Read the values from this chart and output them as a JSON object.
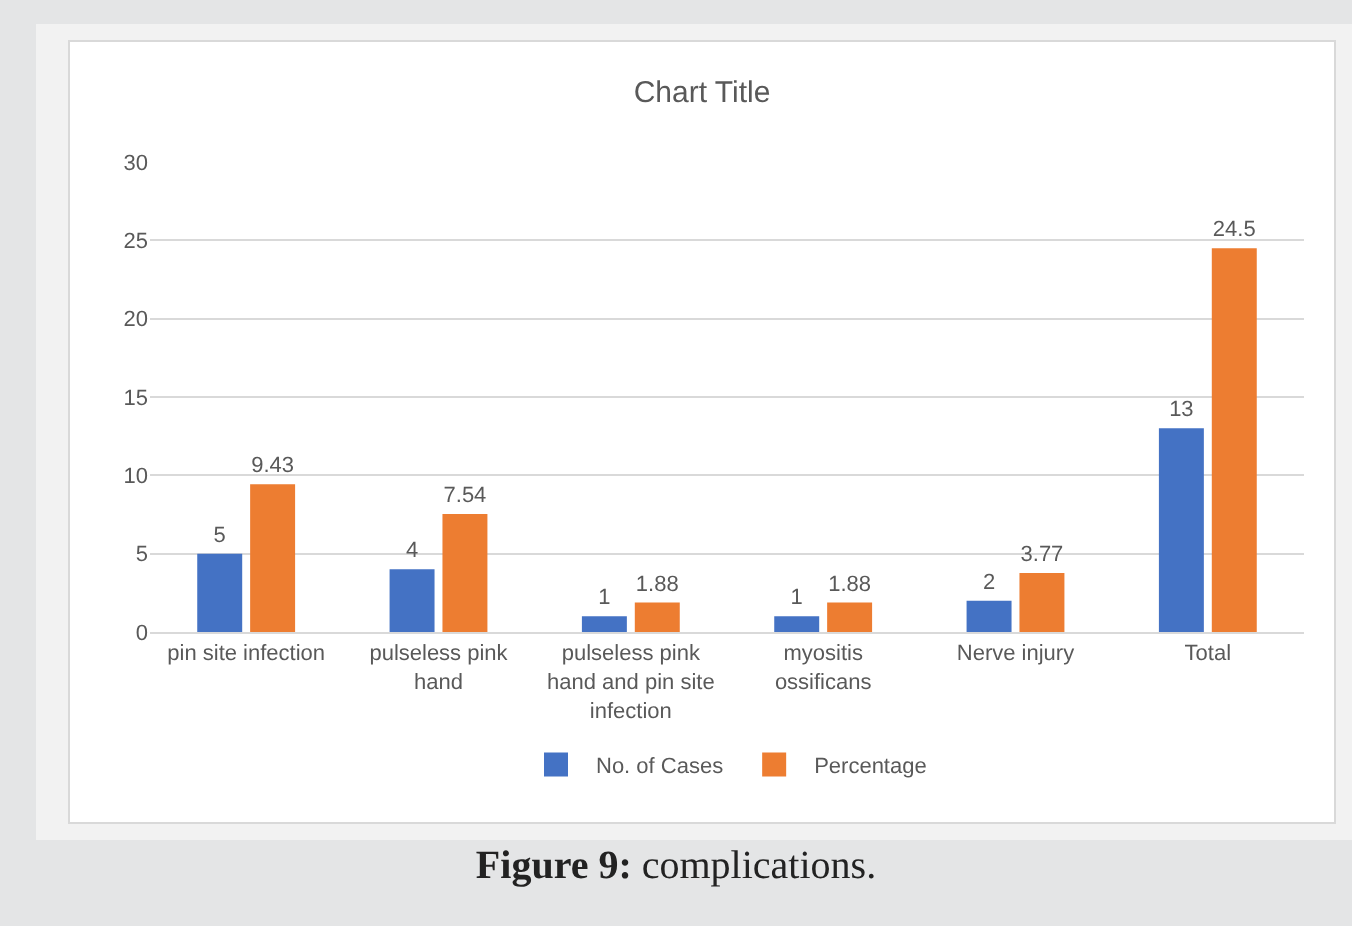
{
  "chart_data": {
    "type": "bar",
    "title": "Chart Title",
    "categories": [
      "pin site infection",
      "pulseless pink hand",
      "pulseless pink hand and pin site infection",
      "myositis ossificans",
      "Nerve injury",
      "Total"
    ],
    "series": [
      {
        "name": "No. of Cases",
        "color": "#4472c4",
        "values": [
          5,
          4,
          1,
          1,
          2,
          13
        ]
      },
      {
        "name": "Percentage",
        "color": "#ed7d31",
        "values": [
          9.43,
          7.54,
          1.88,
          1.88,
          3.77,
          24.5
        ]
      }
    ],
    "ylim": [
      0,
      30
    ],
    "yticks": [
      0,
      5,
      10,
      15,
      20,
      25,
      30
    ],
    "grid": "y",
    "legend": "bottom",
    "data_labels": true,
    "annotations": [
      "Figure 9: complications."
    ]
  }
}
